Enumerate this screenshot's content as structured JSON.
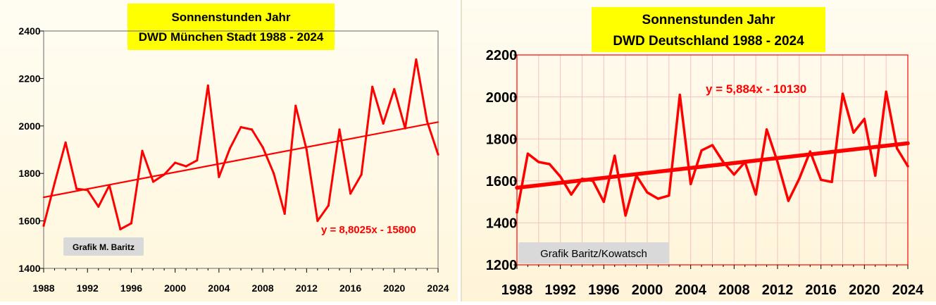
{
  "chart_data": [
    {
      "type": "line",
      "title": "Sonnenstunden Jahr",
      "subtitle": "DWD München Stadt 1988 - 2024",
      "xlabel": "",
      "ylabel": "",
      "xlim": [
        1988,
        2024
      ],
      "ylim": [
        1400,
        2400
      ],
      "x_ticks": [
        1988,
        1992,
        1996,
        2000,
        2004,
        2008,
        2012,
        2016,
        2020,
        2024
      ],
      "y_ticks": [
        1400,
        1600,
        1800,
        2000,
        2200,
        2400
      ],
      "grid": false,
      "series": [
        {
          "x": [
            1988,
            1989,
            1990,
            1991,
            1992,
            1993,
            1994,
            1995,
            1996,
            1997,
            1998,
            1999,
            2000,
            2001,
            2002,
            2003,
            2004,
            2005,
            2006,
            2007,
            2008,
            2009,
            2010,
            2011,
            2012,
            2013,
            2014,
            2015,
            2016,
            2017,
            2018,
            2019,
            2020,
            2021,
            2022,
            2023,
            2024
          ],
          "values": [
            1580,
            1760,
            1930,
            1735,
            1730,
            1660,
            1750,
            1565,
            1590,
            1895,
            1765,
            1795,
            1845,
            1830,
            1855,
            2170,
            1785,
            1905,
            1995,
            1985,
            1910,
            1800,
            1630,
            2085,
            1900,
            1600,
            1665,
            1985,
            1715,
            1795,
            2165,
            2010,
            2155,
            1990,
            2280,
            2020,
            1880
          ],
          "color": "#ff0000"
        }
      ],
      "trendline": {
        "slope": 8.8025,
        "intercept": -15800,
        "label": "y = 8,8025x - 15800",
        "color": "#ff0000"
      },
      "credit": "Grafik M. Baritz"
    },
    {
      "type": "line",
      "title": "Sonnenstunden Jahr",
      "subtitle": "DWD Deutschland 1988 - 2024",
      "xlabel": "",
      "ylabel": "",
      "xlim": [
        1988,
        2024
      ],
      "ylim": [
        1200,
        2200
      ],
      "x_ticks": [
        1988,
        1992,
        1996,
        2000,
        2004,
        2008,
        2012,
        2016,
        2020,
        2024
      ],
      "y_ticks": [
        1200,
        1400,
        1600,
        1800,
        2000,
        2200
      ],
      "grid": true,
      "series": [
        {
          "x": [
            1988,
            1989,
            1990,
            1991,
            1992,
            1993,
            1994,
            1995,
            1996,
            1997,
            1998,
            1999,
            2000,
            2001,
            2002,
            2003,
            2004,
            2005,
            2006,
            2007,
            2008,
            2009,
            2010,
            2011,
            2012,
            2013,
            2014,
            2015,
            2016,
            2017,
            2018,
            2019,
            2020,
            2021,
            2022,
            2023,
            2024
          ],
          "values": [
            1450,
            1730,
            1690,
            1680,
            1620,
            1535,
            1610,
            1600,
            1500,
            1720,
            1435,
            1625,
            1545,
            1515,
            1530,
            2010,
            1585,
            1745,
            1770,
            1690,
            1630,
            1690,
            1535,
            1845,
            1690,
            1505,
            1610,
            1740,
            1605,
            1595,
            2015,
            1830,
            1895,
            1625,
            2025,
            1755,
            1670
          ],
          "color": "#ff0000"
        }
      ],
      "trendline": {
        "slope": 5.884,
        "intercept": -10130,
        "label": "y = 5,884x - 10130",
        "color": "#ff0000"
      },
      "credit": "Grafik Baritz/Kowatsch"
    }
  ]
}
